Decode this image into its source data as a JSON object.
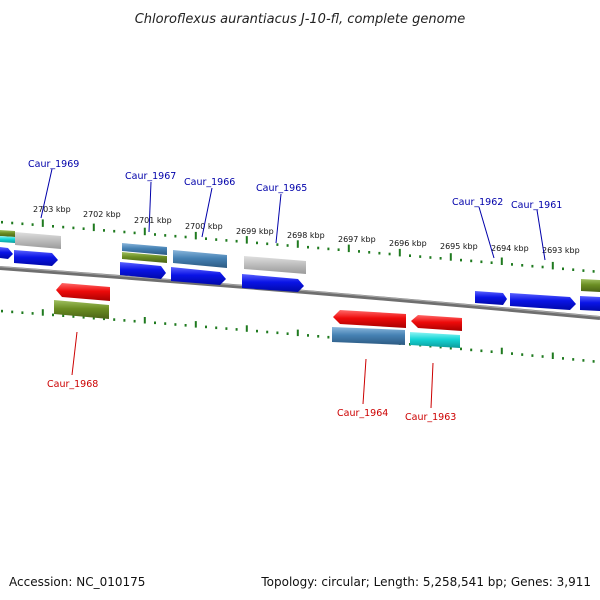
{
  "title": "Chloroflexus aurantiacus J-10-fl, complete genome",
  "footer": {
    "accession": "Accession: NC_010175",
    "summary": "Topology: circular; Length: 5,258,541 bp; Genes: 3,911"
  },
  "colors": {
    "forward_label": "#0000aa",
    "reverse_label": "#cc0000",
    "tick": "#1f7a1f",
    "backbone": "#777777",
    "gene_blue": "#0a14e6",
    "gene_red": "#e60a0a",
    "gene_olive": "#6b8e23",
    "gene_steel": "#4682b4",
    "gene_gray": "#bfbfbf",
    "gene_cyan": "#16d6d6"
  },
  "ticks": [
    {
      "label": "2703 kbp"
    },
    {
      "label": "2702 kbp"
    },
    {
      "label": "2701 kbp"
    },
    {
      "label": "2700 kbp"
    },
    {
      "label": "2699 kbp"
    },
    {
      "label": "2698 kbp"
    },
    {
      "label": "2697 kbp"
    },
    {
      "label": "2696 kbp"
    },
    {
      "label": "2695 kbp"
    },
    {
      "label": "2694 kbp"
    },
    {
      "label": "2693 kbp"
    }
  ],
  "labeled_genes": [
    {
      "label": "Caur_1969",
      "strand": "forward"
    },
    {
      "label": "Caur_1967",
      "strand": "forward"
    },
    {
      "label": "Caur_1966",
      "strand": "forward"
    },
    {
      "label": "Caur_1965",
      "strand": "forward"
    },
    {
      "label": "Caur_1962",
      "strand": "forward"
    },
    {
      "label": "Caur_1961",
      "strand": "forward"
    },
    {
      "label": "Caur_1968",
      "strand": "reverse"
    },
    {
      "label": "Caur_1964",
      "strand": "reverse"
    },
    {
      "label": "Caur_1963",
      "strand": "reverse"
    }
  ]
}
